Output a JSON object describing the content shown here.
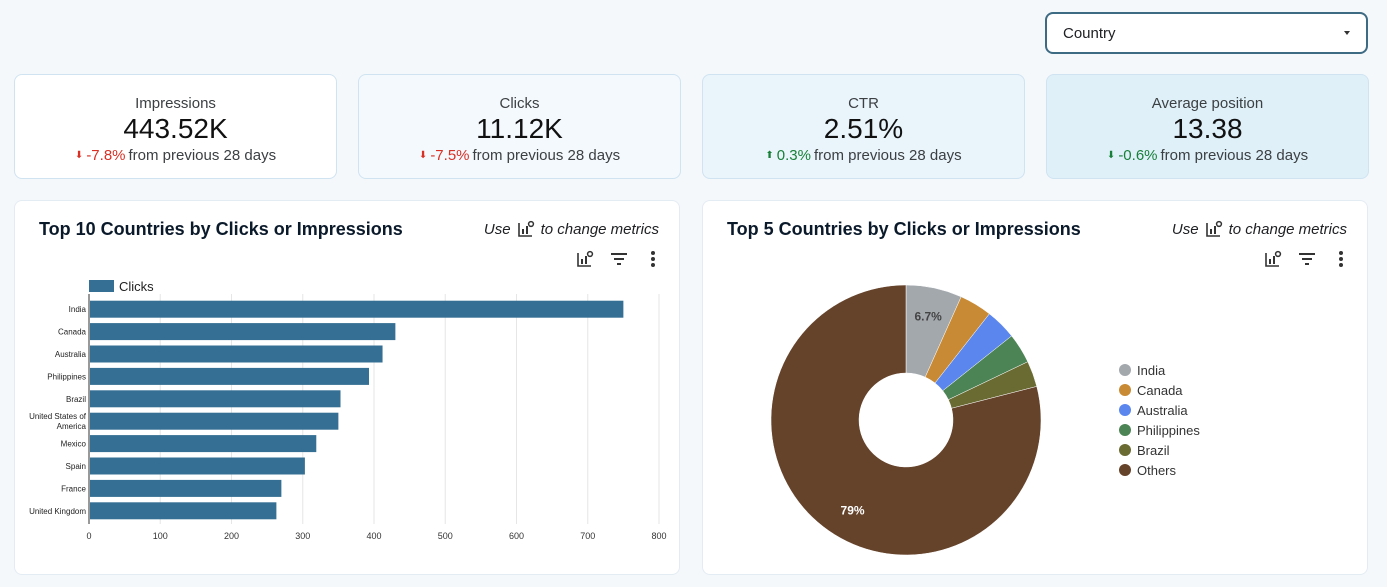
{
  "filter": {
    "label": "Country"
  },
  "kpis": [
    {
      "label": "Impressions",
      "value": "443.52K",
      "delta": "-7.8%",
      "direction": "down",
      "tone": "negative",
      "suffix": "from previous 28 days",
      "bg": "#ffffff"
    },
    {
      "label": "Clicks",
      "value": "11.12K",
      "delta": "-7.5%",
      "direction": "down",
      "tone": "negative",
      "suffix": "from previous 28 days",
      "bg": "#f4f9fd"
    },
    {
      "label": "CTR",
      "value": "2.51%",
      "delta": "0.3%",
      "direction": "up",
      "tone": "positive",
      "suffix": "from previous 28 days",
      "bg": "#e9f4fb"
    },
    {
      "label": "Average position",
      "value": "13.38",
      "delta": "-0.6%",
      "direction": "down",
      "tone": "positive",
      "suffix": "from previous 28 days",
      "bg": "#dff0f9"
    }
  ],
  "cards": {
    "bar": {
      "title": "Top 10 Countries by Clicks or Impressions",
      "hint_prefix": "Use",
      "hint_suffix": "to change metrics"
    },
    "pie": {
      "title": "Top 5 Countries by Clicks or Impressions",
      "hint_prefix": "Use",
      "hint_suffix": "to change metrics"
    }
  },
  "colors": {
    "bar": "#356f93",
    "negative": "#d93025",
    "positive": "#188038",
    "accent": "#3e6b84"
  },
  "icons": {
    "chart_settings": "chart-settings-icon",
    "filter": "filter-icon",
    "more": "more-vert-icon"
  },
  "chart_data": [
    {
      "type": "bar",
      "orientation": "horizontal",
      "series": [
        {
          "name": "Clicks",
          "color": "#356f93",
          "values": [
            750,
            430,
            412,
            393,
            353,
            350,
            319,
            303,
            270,
            263
          ]
        }
      ],
      "categories": [
        "India",
        "Canada",
        "Australia",
        "Philippines",
        "Brazil",
        "United States of America",
        "Mexico",
        "Spain",
        "France",
        "United Kingdom"
      ],
      "xlim": [
        0,
        800
      ],
      "xticks": [
        0,
        100,
        200,
        300,
        400,
        500,
        600,
        700,
        800
      ],
      "grid": true,
      "legend": "top-left"
    },
    {
      "type": "pie",
      "donut": true,
      "slices": [
        {
          "label": "India",
          "value": 6.7,
          "color": "#a3a8ad"
        },
        {
          "label": "Canada",
          "value": 3.9,
          "color": "#c88a34"
        },
        {
          "label": "Australia",
          "value": 3.7,
          "color": "#5a86ee"
        },
        {
          "label": "Philippines",
          "value": 3.6,
          "color": "#4d8455"
        },
        {
          "label": "Brazil",
          "value": 3.1,
          "color": "#6a6a33"
        },
        {
          "label": "Others",
          "value": 79,
          "color": "#65422a"
        }
      ],
      "data_labels": [
        "6.7%",
        "79%"
      ],
      "legend": "right"
    }
  ]
}
